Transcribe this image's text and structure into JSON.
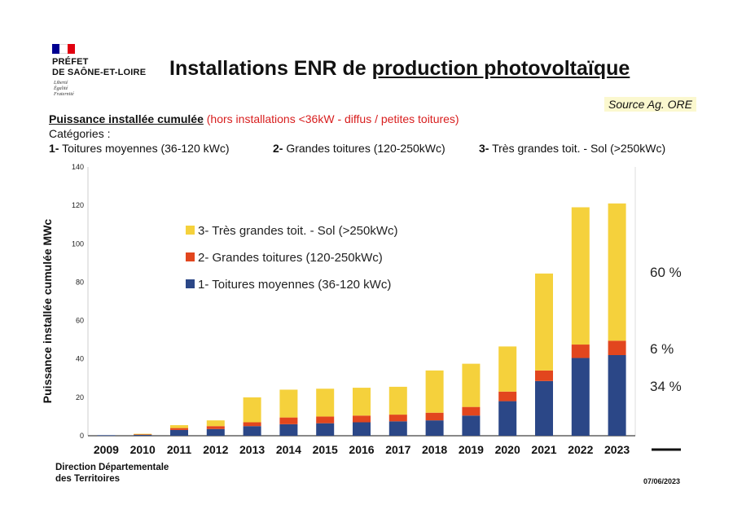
{
  "logo": {
    "line1": "PRÉFET",
    "line2": "DE SAÔNE-ET-LOIRE",
    "motto": [
      "Liberté",
      "Égalité",
      "Fraternité"
    ],
    "flag_colors": [
      "#000091",
      "#ffffff",
      "#e1000f"
    ]
  },
  "header": {
    "title_plain": "Installations ENR de ",
    "title_underlined": "production photovoltaïque",
    "source": "Source Ag. ORE"
  },
  "subtitle": {
    "main": "Puissance installée cumulée",
    "note": "(hors installations <36kW - diffus / petites toitures)"
  },
  "categories_block": {
    "label": "Catégories :",
    "items": [
      {
        "num": "1-",
        "text": "Toitures moyennes (36-120 kWc)"
      },
      {
        "num": "2-",
        "text": "Grandes toitures (120-250kWc)"
      },
      {
        "num": "3-",
        "text": "Très grandes toit. - Sol (>250kWc)"
      }
    ]
  },
  "colors": {
    "cat1": "#2b4787",
    "cat2": "#e2461e",
    "cat3": "#f5d13c",
    "grid": "#dddddd",
    "axis": "#111111"
  },
  "chart_data": {
    "type": "bar",
    "stacked": true,
    "ylabel": "Puissance installée cumulée MWc",
    "ylim": [
      0,
      140
    ],
    "yticks": [
      "0",
      "20",
      "40",
      "60",
      "80",
      "100",
      "120",
      "140"
    ],
    "categories": [
      "2009",
      "2010",
      "2011",
      "2012",
      "2013",
      "2014",
      "2015",
      "2016",
      "2017",
      "2018",
      "2019",
      "2020",
      "2021",
      "2022",
      "2023"
    ],
    "series": [
      {
        "name": "1- Toitures moyennes (36-120 kWc)",
        "color_key": "cat1",
        "values": [
          0.3,
          0.6,
          3,
          3.5,
          5,
          6,
          6.5,
          7,
          7.5,
          8,
          10.5,
          18,
          28.5,
          40.5,
          42
        ]
      },
      {
        "name": "2- Grandes toitures (120-250kWc)",
        "color_key": "cat2",
        "values": [
          0,
          0.2,
          1,
          1.5,
          2,
          3.5,
          3.5,
          3.5,
          3.5,
          4,
          4.5,
          5,
          5.5,
          7,
          7.5
        ]
      },
      {
        "name": "3- Très grandes toit. - Sol (>250kWc)",
        "color_key": "cat3",
        "values": [
          0,
          0.2,
          1.5,
          3,
          13,
          14.5,
          14.5,
          14.5,
          14.5,
          22,
          22.5,
          23.5,
          50.5,
          71.5,
          71.5
        ]
      }
    ],
    "legend": {
      "placement": "top-left inside",
      "order": [
        2,
        1,
        0
      ]
    },
    "share_annotations": [
      {
        "label": "60 %",
        "series": 2
      },
      {
        "label": "6 %",
        "series": 1
      },
      {
        "label": "34 %",
        "series": 0
      }
    ],
    "grid": false
  },
  "footer": {
    "dir_line1": "Direction Départementale",
    "dir_line2": "des Territoires",
    "date": "07/06/2023"
  }
}
